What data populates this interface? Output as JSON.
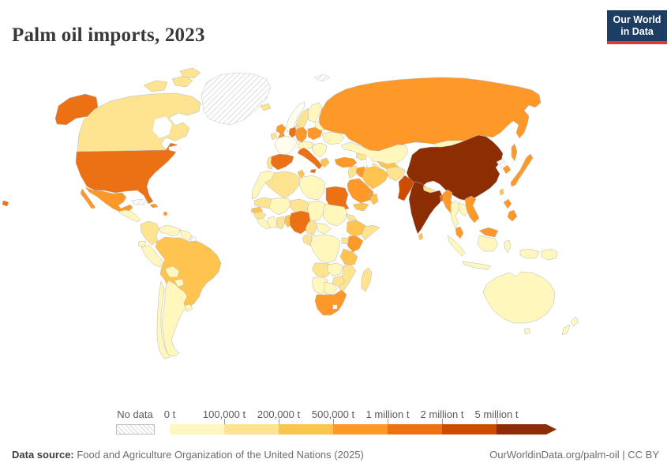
{
  "header": {
    "title": "Palm oil imports, 2023",
    "logo_line1": "Our World",
    "logo_line2": "in Data",
    "logo_bg_color": "#1d3d63",
    "logo_accent_color": "#dc3d33"
  },
  "legend": {
    "no_data_label": "No data",
    "zero_label": "0 t",
    "tick_labels": [
      "100,000 t",
      "200,000 t",
      "500,000 t",
      "1 million t",
      "2 million t",
      "5 million t"
    ]
  },
  "footer": {
    "source_label": "Data source:",
    "source_text": " Food and Agriculture Organization of the United Nations (2025)",
    "license_text": "OurWorldinData.org/palm-oil | CC BY"
  },
  "chart_data": {
    "type": "choropleth",
    "title": "Palm oil imports, 2023",
    "year": 2023,
    "unit": "tonnes",
    "legend_position": "bottom",
    "no_data_pattern": "diagonal-hatch",
    "below_lowest_color": "#fffdec",
    "bins": [
      {
        "label": "0 t – 100,000 t",
        "color": "#fff7bc"
      },
      {
        "label": "100,000 t – 200,000 t",
        "color": "#fee391"
      },
      {
        "label": "200,000 t – 500,000 t",
        "color": "#fec44f"
      },
      {
        "label": "500,000 t – 1 million t",
        "color": "#fe9929"
      },
      {
        "label": "1 million t – 2 million t",
        "color": "#ec7014"
      },
      {
        "label": "2 million t – 5 million t",
        "color": "#cc4c02"
      },
      {
        "label": "5 million t +",
        "color": "#8c2d04"
      }
    ],
    "countries": {
      "united-states": 4,
      "canada": 1,
      "canadian-arctic": 1,
      "greenland": "no_data",
      "svalbard": "no_data",
      "mexico": 3,
      "central-america": 0,
      "cuba": "no_data",
      "hispaniola": 3,
      "lesser-antilles": 3,
      "colombia": 1,
      "venezuela": 0,
      "guyanas": 0,
      "french-guiana": "no_data",
      "ecuador": 0,
      "peru": 0,
      "brazil": 2,
      "bolivia": 0,
      "paraguay": 0,
      "uruguay": 0,
      "argentina": 0,
      "chile": 0,
      "iceland": 1,
      "norway": "min",
      "sweden": 1,
      "finland": 0,
      "denmark": 1,
      "united-kingdom": 3,
      "ireland": 1,
      "france": "min",
      "netherlands-belgium": 4,
      "germany": 3,
      "poland": 3,
      "central-europe": 0,
      "italy": 4,
      "balkans": 0,
      "greece": 2,
      "ukraine": 0,
      "belarus-baltics": 0,
      "spain": 4,
      "portugal": 1,
      "russia": 3,
      "kazakhstan": 0,
      "caucasus": 1,
      "turkmenistan": 1,
      "uzbekistan": 2,
      "mongolia": 0,
      "china": 6,
      "taiwan": 2,
      "north-korea": "no_data",
      "south-korea": 3,
      "japan": 3,
      "afghanistan": 1,
      "pakistan": 5,
      "india": 6,
      "nepal": 1,
      "bangladesh": 4,
      "sri-lanka": 2,
      "myanmar": 3,
      "thailand": 0,
      "laos-cambodia": 0,
      "vietnam": 3,
      "malaysia": 3,
      "indonesia": 0,
      "philippines": 3,
      "turkey": 3,
      "levant": 1,
      "iraq": 3,
      "iran": 2,
      "saudi-arabia": 3,
      "yemen": 2,
      "oman": 2,
      "uae": 3,
      "morocco": 0,
      "algeria": 1,
      "tunisia": 2,
      "libya": 0,
      "egypt": 4,
      "mauritania": 1,
      "mali": 0,
      "niger": 1,
      "chad": 0,
      "sudan": 0,
      "senegal": 2,
      "guinea": 1,
      "sierra-leone-liberia": 0,
      "cote-divoire": 0,
      "ghana": 1,
      "togo-benin": 2,
      "nigeria": 4,
      "cameroon": 1,
      "central-african-republic": 0,
      "eritrea": 1,
      "ethiopia": 2,
      "somalia": 1,
      "kenya": 3,
      "uganda": 1,
      "drc": 0,
      "congo-gabon": 1,
      "tanzania": 2,
      "angola": 1,
      "zambia": 0,
      "mozambique": 1,
      "zimbabwe": 1,
      "namibia": 0,
      "botswana": 0,
      "south-africa": 3,
      "madagascar": 1,
      "australia": 0,
      "papua-new-guinea": 0,
      "new-zealand": 0
    }
  }
}
